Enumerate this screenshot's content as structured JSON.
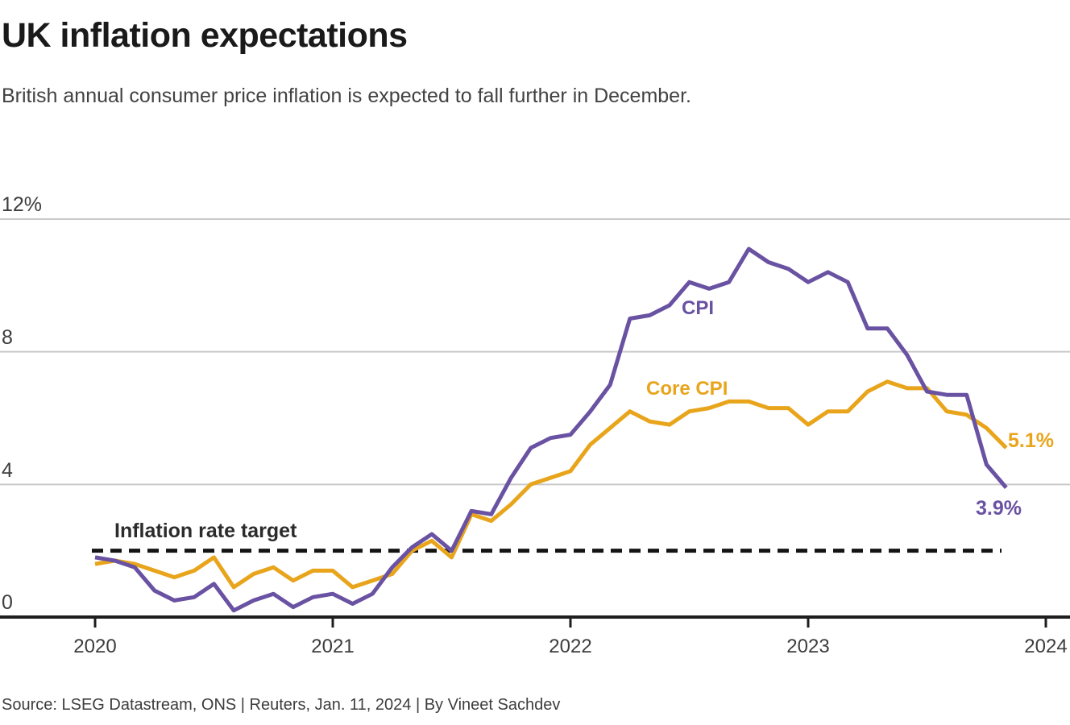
{
  "header": {
    "title": "UK inflation expectations",
    "subtitle": "British annual consumer price inflation is expected to fall further in December."
  },
  "footer": {
    "source": "Source: LSEG Datastream, ONS | Reuters, Jan. 11, 2024 | By Vineet Sachdev"
  },
  "chart_data": {
    "type": "line",
    "title": "UK inflation expectations",
    "xlabel": "",
    "ylabel": "%",
    "ylim": [
      0,
      12
    ],
    "grid": "horizontal",
    "x_start": "2020-01",
    "x_end": "2023-11",
    "points_interval": "monthly",
    "series": [
      {
        "name": "CPI",
        "color": "#6A52A3",
        "end_label": "3.9%",
        "values": [
          1.8,
          1.7,
          1.5,
          0.8,
          0.5,
          0.6,
          1.0,
          0.2,
          0.5,
          0.7,
          0.3,
          0.6,
          0.7,
          0.4,
          0.7,
          1.5,
          2.1,
          2.5,
          2.0,
          3.2,
          3.1,
          4.2,
          5.1,
          5.4,
          5.5,
          6.2,
          7.0,
          9.0,
          9.1,
          9.4,
          10.1,
          9.9,
          10.1,
          11.1,
          10.7,
          10.5,
          10.1,
          10.4,
          10.1,
          8.7,
          8.7,
          7.9,
          6.8,
          6.7,
          6.7,
          4.6,
          3.9
        ]
      },
      {
        "name": "Core CPI",
        "color": "#E8A51C",
        "end_label": "5.1%",
        "values": [
          1.6,
          1.7,
          1.6,
          1.4,
          1.2,
          1.4,
          1.8,
          0.9,
          1.3,
          1.5,
          1.1,
          1.4,
          1.4,
          0.9,
          1.1,
          1.3,
          2.0,
          2.3,
          1.8,
          3.1,
          2.9,
          3.4,
          4.0,
          4.2,
          4.4,
          5.2,
          5.7,
          6.2,
          5.9,
          5.8,
          6.2,
          6.3,
          6.5,
          6.5,
          6.3,
          6.3,
          5.8,
          6.2,
          6.2,
          6.8,
          7.1,
          6.9,
          6.9,
          6.2,
          6.1,
          5.7,
          5.1
        ]
      }
    ],
    "target_line": {
      "value": 2,
      "label": "Inflation rate target",
      "style": "dashed",
      "color": "#141414"
    },
    "y_ticks": [
      {
        "value": 12,
        "label": "12%"
      },
      {
        "value": 8,
        "label": "8"
      },
      {
        "value": 4,
        "label": "4"
      },
      {
        "value": 0,
        "label": "0"
      }
    ],
    "x_ticks": [
      {
        "month_index": 0,
        "label": "2020"
      },
      {
        "month_index": 12,
        "label": "2021"
      },
      {
        "month_index": 24,
        "label": "2022"
      },
      {
        "month_index": 36,
        "label": "2023"
      },
      {
        "month_index": 48,
        "label": "2024"
      }
    ]
  }
}
